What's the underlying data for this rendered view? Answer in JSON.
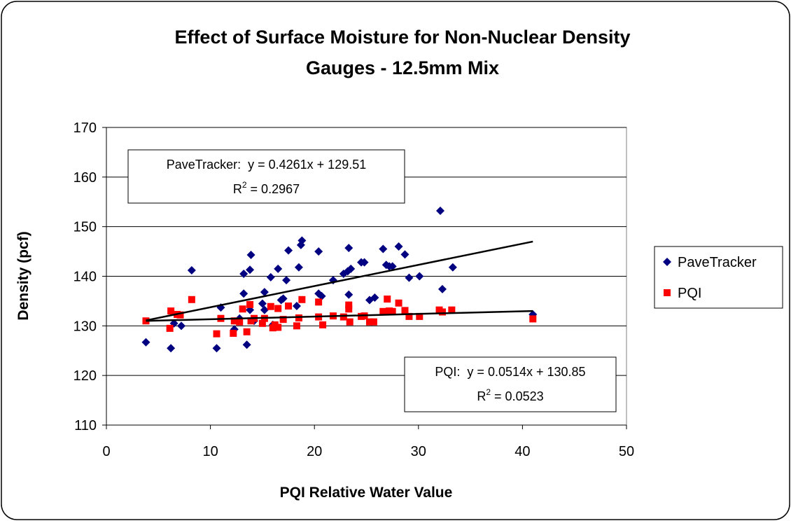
{
  "chart_data": {
    "type": "scatter",
    "title": [
      "Effect of Surface Moisture for Non-Nuclear Density",
      "Gauges - 12.5mm Mix"
    ],
    "x_label": "PQI Relative Water Value",
    "y_label": "Density (pcf)",
    "xlim": [
      0,
      50
    ],
    "xticks": [
      0,
      10,
      20,
      30,
      40,
      50
    ],
    "ylim": [
      110,
      170
    ],
    "yticks": [
      110,
      120,
      130,
      140,
      150,
      160,
      170
    ],
    "grid": true,
    "legend": "right",
    "series": [
      {
        "name": "PaveTracker",
        "color": "#000080",
        "marker": "diamond",
        "x": [
          3.8,
          6.2,
          6.5,
          7.2,
          8.2,
          10.6,
          11.0,
          12.3,
          12.8,
          13.2,
          13.2,
          13.5,
          13.8,
          13.9,
          13.8,
          14.2,
          15.0,
          15.2,
          15.2,
          15.8,
          16.0,
          16.5,
          16.8,
          17.0,
          17.3,
          17.5,
          18.3,
          18.5,
          18.7,
          18.8,
          20.4,
          20.4,
          20.7,
          21.8,
          22.8,
          23.2,
          23.3,
          23.5,
          23.3,
          24.5,
          24.8,
          25.3,
          25.8,
          26.6,
          26.9,
          27.2,
          27.5,
          28.1,
          28.7,
          29.1,
          30.1,
          32.1,
          32.3,
          33.3,
          41.0
        ],
        "values": [
          126.7,
          125.5,
          130.5,
          130.0,
          141.2,
          125.5,
          133.7,
          129.3,
          131.5,
          136.5,
          140.5,
          126.2,
          141.3,
          144.3,
          133.2,
          131.0,
          134.5,
          136.8,
          133.2,
          139.8,
          130.2,
          141.5,
          135.2,
          135.5,
          139.2,
          145.2,
          134.0,
          141.8,
          146.3,
          147.2,
          145.0,
          136.5,
          136.0,
          139.2,
          140.5,
          141.0,
          145.7,
          141.5,
          136.3,
          142.8,
          142.8,
          135.2,
          135.7,
          145.5,
          142.3,
          142.0,
          142.0,
          146.0,
          144.4,
          139.7,
          140.0,
          153.2,
          137.4,
          141.8,
          132.3
        ]
      },
      {
        "name": "PQI",
        "color": "#ff0000",
        "marker": "square",
        "x": [
          3.8,
          6.1,
          6.2,
          6.8,
          7.1,
          8.2,
          10.6,
          11.0,
          12.2,
          12.3,
          12.8,
          13.1,
          13.5,
          13.8,
          13.9,
          14.2,
          15.0,
          15.2,
          15.8,
          16.0,
          16.2,
          16.5,
          16.5,
          17.0,
          17.5,
          18.3,
          18.5,
          18.8,
          20.4,
          20.4,
          20.8,
          21.8,
          22.8,
          23.3,
          23.3,
          23.4,
          24.5,
          24.8,
          25.3,
          25.7,
          26.6,
          27.0,
          27.2,
          27.5,
          28.1,
          28.7,
          29.1,
          30.1,
          32.0,
          32.3,
          33.2,
          41.0
        ],
        "values": [
          131.0,
          129.5,
          133.0,
          132.3,
          132.2,
          135.3,
          128.4,
          131.5,
          128.5,
          131.0,
          130.8,
          133.4,
          128.8,
          134.3,
          131.0,
          131.5,
          130.5,
          131.5,
          133.9,
          129.6,
          130.2,
          133.5,
          129.7,
          131.3,
          134.0,
          130.0,
          131.6,
          135.3,
          134.8,
          131.8,
          130.2,
          132.0,
          131.8,
          133.4,
          134.2,
          130.8,
          131.9,
          132.0,
          130.8,
          130.8,
          132.9,
          135.4,
          133.0,
          132.9,
          134.6,
          133.1,
          131.9,
          131.9,
          133.2,
          132.8,
          133.2,
          131.4
        ]
      }
    ],
    "trendlines": [
      {
        "x": [
          3.8,
          41.0
        ],
        "values": [
          131.1,
          147.0
        ]
      },
      {
        "x": [
          3.8,
          41.0
        ],
        "values": [
          131.0,
          133.0
        ]
      }
    ],
    "annotations": [
      {
        "equation": "PaveTracker:  y = 0.4261x + 129.51",
        "r_base": "R",
        "r_exp": "2",
        "r_rest": " = 0.2967"
      },
      {
        "equation": "PQI:  y = 0.0514x + 130.85",
        "r_base": "R",
        "r_exp": "2",
        "r_rest": " = 0.0523"
      }
    ]
  }
}
